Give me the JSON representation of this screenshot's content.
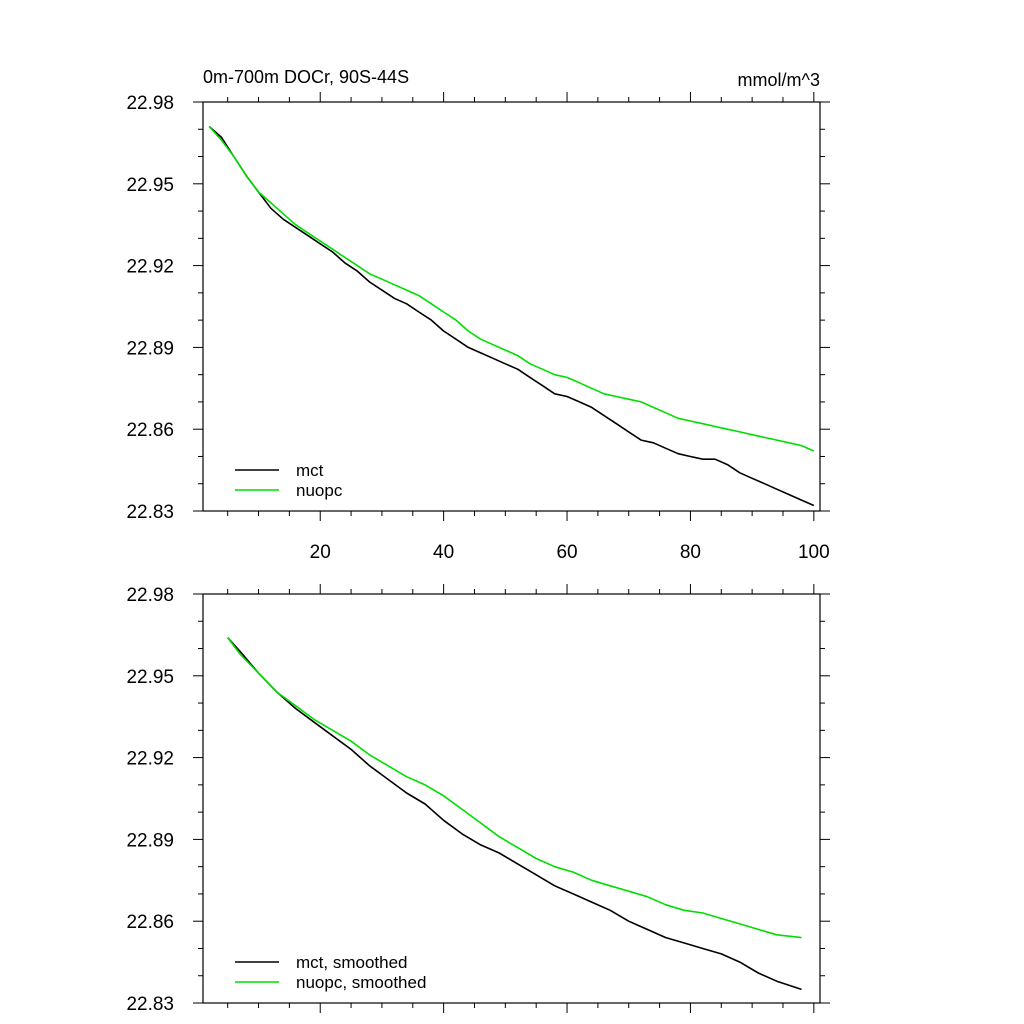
{
  "chart_data": [
    {
      "type": "line",
      "title": "0m-700m DOCr, 90S-44S",
      "units": "mmol/m^3",
      "xlim": [
        1,
        101
      ],
      "ylim": [
        22.83,
        22.98
      ],
      "x_ticks": [
        20,
        40,
        60,
        80,
        100
      ],
      "y_ticks": [
        22.83,
        22.86,
        22.89,
        22.92,
        22.95,
        22.98
      ],
      "legend_position": "bottom-left",
      "series": [
        {
          "name": "mct",
          "color": "#000000",
          "x": [
            2,
            4,
            6,
            8,
            10,
            12,
            14,
            16,
            18,
            20,
            22,
            24,
            26,
            28,
            30,
            32,
            34,
            36,
            38,
            40,
            42,
            44,
            46,
            48,
            50,
            52,
            54,
            56,
            58,
            60,
            62,
            64,
            66,
            68,
            70,
            72,
            74,
            76,
            78,
            80,
            82,
            84,
            86,
            88,
            90,
            92,
            94,
            96,
            98,
            100
          ],
          "values": [
            22.971,
            22.967,
            22.96,
            22.953,
            22.947,
            22.941,
            22.937,
            22.934,
            22.931,
            22.928,
            22.925,
            22.921,
            22.918,
            22.914,
            22.911,
            22.908,
            22.906,
            22.903,
            22.9,
            22.896,
            22.893,
            22.89,
            22.888,
            22.886,
            22.884,
            22.882,
            22.879,
            22.876,
            22.873,
            22.872,
            22.87,
            22.868,
            22.865,
            22.862,
            22.859,
            22.856,
            22.855,
            22.853,
            22.851,
            22.85,
            22.849,
            22.849,
            22.847,
            22.844,
            22.842,
            22.84,
            22.838,
            22.836,
            22.834,
            22.832
          ]
        },
        {
          "name": "nuopc",
          "color": "#00dd00",
          "x": [
            2,
            4,
            6,
            8,
            10,
            12,
            14,
            16,
            18,
            20,
            22,
            24,
            26,
            28,
            30,
            32,
            34,
            36,
            38,
            40,
            42,
            44,
            46,
            48,
            50,
            52,
            54,
            56,
            58,
            60,
            62,
            64,
            66,
            68,
            70,
            72,
            74,
            76,
            78,
            80,
            82,
            84,
            86,
            88,
            90,
            92,
            94,
            96,
            98,
            100
          ],
          "values": [
            22.971,
            22.966,
            22.96,
            22.953,
            22.947,
            22.943,
            22.939,
            22.935,
            22.932,
            22.929,
            22.926,
            22.923,
            22.92,
            22.917,
            22.915,
            22.913,
            22.911,
            22.909,
            22.906,
            22.903,
            22.9,
            22.896,
            22.893,
            22.891,
            22.889,
            22.887,
            22.884,
            22.882,
            22.88,
            22.879,
            22.877,
            22.875,
            22.873,
            22.872,
            22.871,
            22.87,
            22.868,
            22.866,
            22.864,
            22.863,
            22.862,
            22.861,
            22.86,
            22.859,
            22.858,
            22.857,
            22.856,
            22.855,
            22.854,
            22.852
          ]
        }
      ]
    },
    {
      "type": "line",
      "xlim": [
        1,
        101
      ],
      "ylim": [
        22.83,
        22.98
      ],
      "x_ticks": [
        20,
        40,
        60,
        80,
        100
      ],
      "y_ticks": [
        22.83,
        22.86,
        22.89,
        22.92,
        22.95,
        22.98
      ],
      "legend_position": "bottom-left",
      "series": [
        {
          "name": "mct, smoothed",
          "color": "#000000",
          "x": [
            5,
            7,
            10,
            13,
            16,
            19,
            22,
            25,
            28,
            31,
            34,
            37,
            40,
            43,
            46,
            49,
            52,
            55,
            58,
            61,
            64,
            67,
            70,
            73,
            76,
            79,
            82,
            85,
            88,
            91,
            94,
            98
          ],
          "values": [
            22.964,
            22.959,
            22.951,
            22.944,
            22.938,
            22.933,
            22.928,
            22.923,
            22.917,
            22.912,
            22.907,
            22.903,
            22.897,
            22.892,
            22.888,
            22.885,
            22.881,
            22.877,
            22.873,
            22.87,
            22.867,
            22.864,
            22.86,
            22.857,
            22.854,
            22.852,
            22.85,
            22.848,
            22.845,
            22.841,
            22.838,
            22.835
          ]
        },
        {
          "name": "nuopc, smoothed",
          "color": "#00dd00",
          "x": [
            5,
            7,
            10,
            13,
            16,
            19,
            22,
            25,
            28,
            31,
            34,
            37,
            40,
            43,
            46,
            49,
            52,
            55,
            58,
            61,
            64,
            67,
            70,
            73,
            76,
            79,
            82,
            85,
            88,
            91,
            94,
            98
          ],
          "values": [
            22.964,
            22.958,
            22.951,
            22.944,
            22.939,
            22.934,
            22.93,
            22.926,
            22.921,
            22.917,
            22.913,
            22.91,
            22.906,
            22.901,
            22.896,
            22.891,
            22.887,
            22.883,
            22.88,
            22.878,
            22.875,
            22.873,
            22.871,
            22.869,
            22.866,
            22.864,
            22.863,
            22.861,
            22.859,
            22.857,
            22.855,
            22.854
          ]
        }
      ]
    }
  ]
}
